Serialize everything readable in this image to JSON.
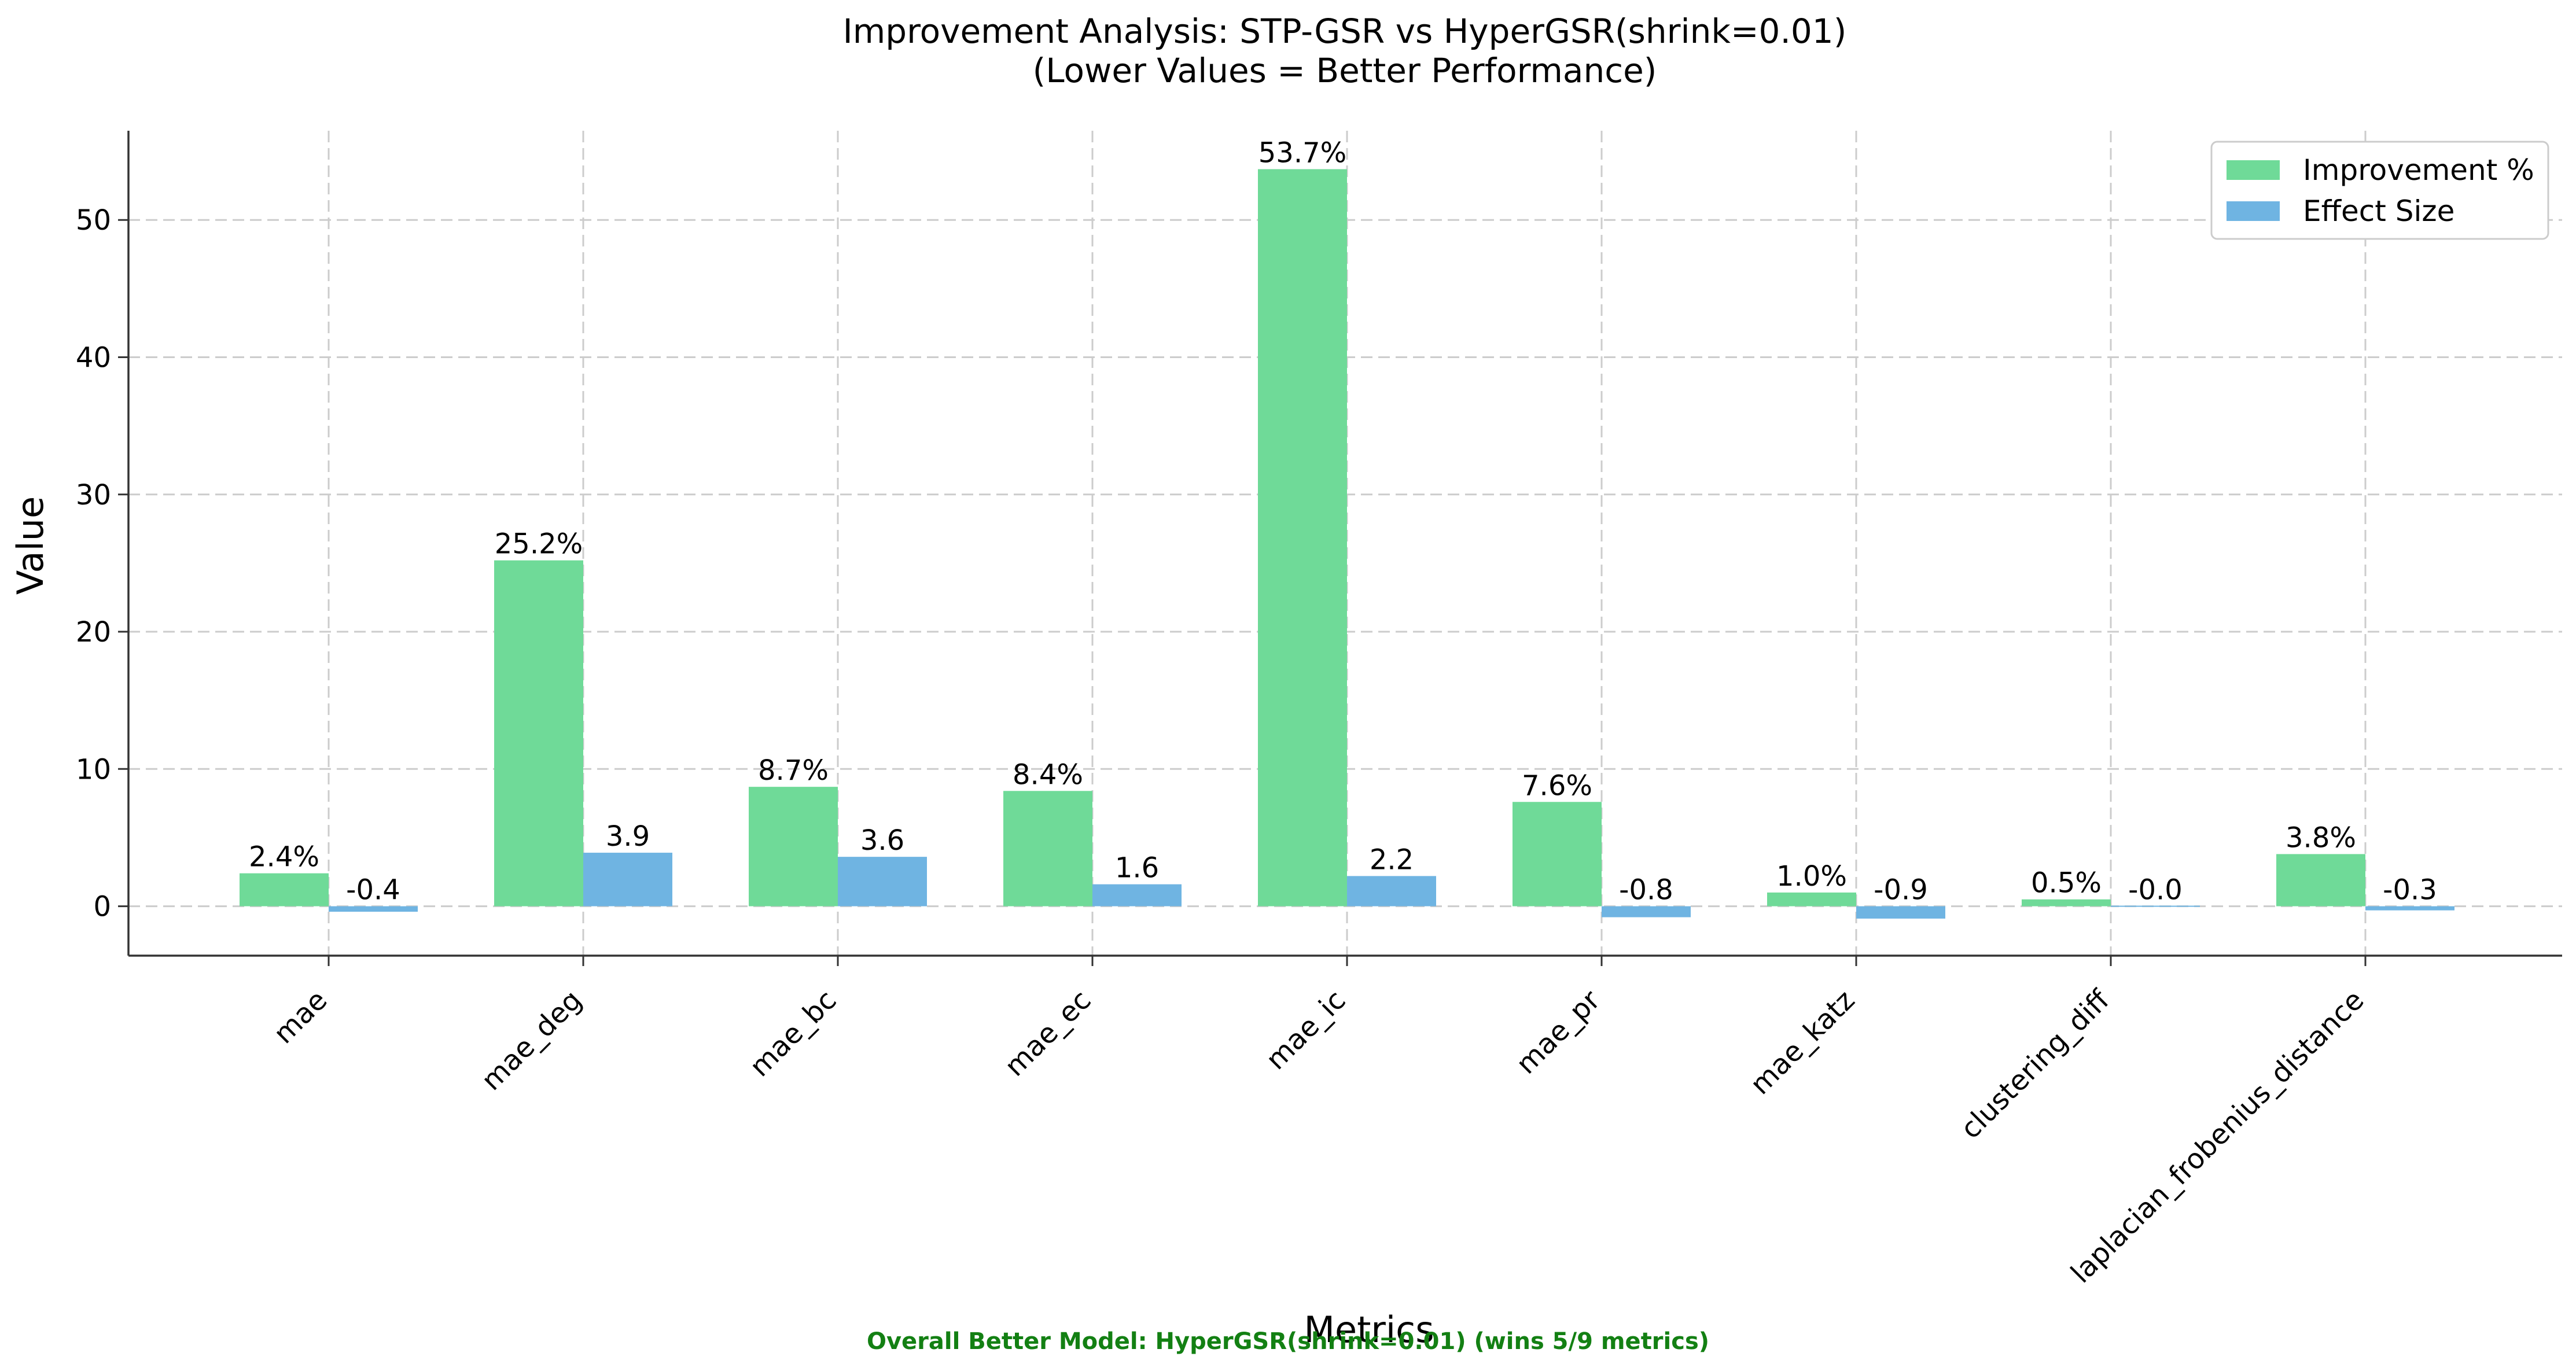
{
  "chart_data": {
    "type": "bar",
    "title": "Improvement Analysis: STP-GSR vs HyperGSR(shrink=0.01)",
    "subtitle": "(Lower Values = Better Performance)",
    "xlabel": "Metrics",
    "ylabel": "Value",
    "categories": [
      "mae",
      "mae_deg",
      "mae_bc",
      "mae_ec",
      "mae_ic",
      "mae_pr",
      "mae_katz",
      "clustering_diff",
      "laplacian_frobenius_distance"
    ],
    "series": [
      {
        "name": "Improvement %",
        "color": "#6fda98",
        "values": [
          2.4,
          25.2,
          8.7,
          8.4,
          53.7,
          7.6,
          1.0,
          0.5,
          3.8
        ],
        "labels": [
          "2.4%",
          "25.2%",
          "8.7%",
          "8.4%",
          "53.7%",
          "7.6%",
          "1.0%",
          "0.5%",
          "3.8%"
        ]
      },
      {
        "name": "Effect Size",
        "color": "#6fb4e2",
        "values": [
          -0.4,
          3.9,
          3.6,
          1.6,
          2.2,
          -0.8,
          -0.9,
          -0.02,
          -0.3
        ],
        "labels": [
          "-0.4",
          "3.9",
          "3.6",
          "1.6",
          "2.2",
          "-0.8",
          "-0.9",
          "-0.0",
          "-0.3"
        ]
      }
    ],
    "ylim": [
      -3.6,
      56.5
    ],
    "yticks": [
      0,
      10,
      20,
      30,
      40,
      50
    ],
    "grid": true,
    "legend_position": "top-right",
    "footnote": "Overall Better Model: HyperGSR(shrink=0.01) (wins 5/9 metrics)",
    "footnote_color": "#138013"
  }
}
